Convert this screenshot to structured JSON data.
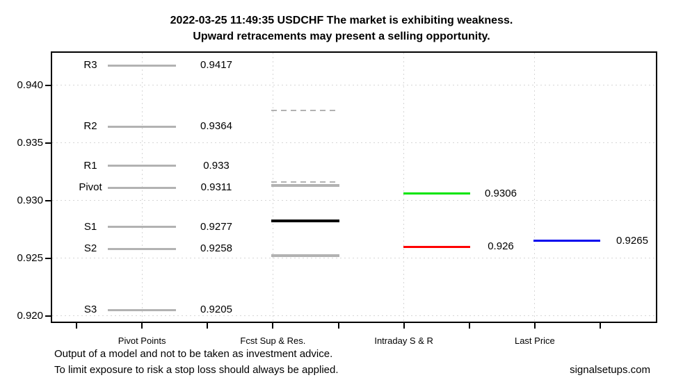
{
  "footer": {
    "line1": "Output of a model and not to be taken as investment advice.",
    "line2": "To limit exposure to risk a stop loss should always be applied.",
    "brand": "signalsetups.com"
  },
  "chart_data": {
    "type": "line",
    "title_line1": "2022-03-25 11:49:35 USDCHF The market is exhibiting weakness.",
    "title_line2": "Upward retracements may present a selling opportunity.",
    "xlabel": "",
    "ylabel": "",
    "ylim": [
      0.9195,
      0.9428
    ],
    "yticks": [
      0.94,
      0.935,
      0.93,
      0.925,
      0.92
    ],
    "ytick_labels": [
      "0.940",
      "0.935",
      "0.930",
      "0.925",
      "0.920"
    ],
    "grid": "dotted, horizontal at y-ticks and vertical at category centers",
    "legend": "none",
    "categories": [
      "Pivot Points",
      "Fcst Sup & Res.",
      "Intraday S & R",
      "Last Price"
    ],
    "groups": [
      {
        "name": "Pivot Points",
        "levels": [
          {
            "label": "R3",
            "value": 0.9417,
            "value_label": "0.9417",
            "color": "#b2b2b2",
            "style": "solid",
            "weight": "thin"
          },
          {
            "label": "R2",
            "value": 0.9364,
            "value_label": "0.9364",
            "color": "#b2b2b2",
            "style": "solid",
            "weight": "thin"
          },
          {
            "label": "R1",
            "value": 0.933,
            "value_label": "0.933",
            "color": "#b2b2b2",
            "style": "solid",
            "weight": "thin"
          },
          {
            "label": "Pivot",
            "value": 0.9311,
            "value_label": "0.9311",
            "color": "#b2b2b2",
            "style": "solid",
            "weight": "thin"
          },
          {
            "label": "S1",
            "value": 0.9277,
            "value_label": "0.9277",
            "color": "#b2b2b2",
            "style": "solid",
            "weight": "thin"
          },
          {
            "label": "S2",
            "value": 0.9258,
            "value_label": "0.9258",
            "color": "#b2b2b2",
            "style": "solid",
            "weight": "thin"
          },
          {
            "label": "S3",
            "value": 0.9205,
            "value_label": "0.9205",
            "color": "#b2b2b2",
            "style": "solid",
            "weight": "thin"
          }
        ]
      },
      {
        "name": "Fcst Sup & Res.",
        "levels": [
          {
            "label": "",
            "value": 0.9378,
            "value_label": "",
            "color": "#b2b2b2",
            "style": "dashed",
            "weight": "thin"
          },
          {
            "label": "",
            "value": 0.9316,
            "value_label": "",
            "color": "#b2b2b2",
            "style": "dashed",
            "weight": "thin"
          },
          {
            "label": "",
            "value": 0.9313,
            "value_label": "",
            "color": "#b2b2b2",
            "style": "solid",
            "weight": "thick"
          },
          {
            "label": "",
            "value": 0.9282,
            "value_label": "",
            "color": "#000000",
            "style": "solid",
            "weight": "thick"
          },
          {
            "label": "",
            "value": 0.9252,
            "value_label": "",
            "color": "#b2b2b2",
            "style": "solid",
            "weight": "thick"
          }
        ]
      },
      {
        "name": "Intraday S & R",
        "levels": [
          {
            "label": "",
            "value": 0.9306,
            "value_label": "0.9306",
            "color": "#00e500",
            "style": "solid",
            "weight": "thin"
          },
          {
            "label": "",
            "value": 0.926,
            "value_label": "0.926",
            "color": "#ff0000",
            "style": "solid",
            "weight": "thin"
          }
        ]
      },
      {
        "name": "Last Price",
        "levels": [
          {
            "label": "",
            "value": 0.9265,
            "value_label": "0.9265",
            "color": "#0000ee",
            "style": "solid",
            "weight": "thin"
          }
        ]
      }
    ]
  }
}
